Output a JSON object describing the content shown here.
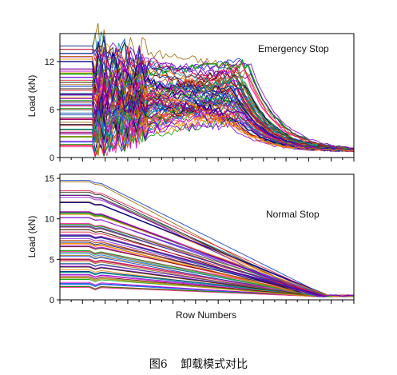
{
  "figure": {
    "caption_number": "图6",
    "caption_text": "卸载模式对比"
  },
  "chart_data": [
    {
      "type": "line",
      "title": "Emergency Stop",
      "xlabel": "",
      "ylabel": "Load (kN)",
      "yticks": [
        "0",
        "6",
        "12"
      ],
      "ylim": [
        0,
        15.5
      ],
      "xlim": [
        0,
        100
      ],
      "grid": false,
      "legend": "none",
      "series_count": 70,
      "notes_initial_loads_kN": [
        1.5,
        2.0,
        2.6,
        3.0,
        3.6,
        4.0,
        4.6,
        5.0,
        5.5,
        6.0,
        6.5,
        7.0,
        7.5,
        8.0,
        8.5,
        9.0,
        9.5,
        10.0,
        10.6,
        11.0,
        12.2,
        12.8,
        13.0,
        13.5,
        14.0
      ],
      "final_load_kN_approx": 0.8
    },
    {
      "type": "line",
      "title": "Normal Stop",
      "xlabel": "Row Numbers",
      "ylabel": "Load (kN)",
      "yticks": [
        "0",
        "5",
        "10",
        "15"
      ],
      "ylim": [
        0,
        15.5
      ],
      "xlim": [
        0,
        100
      ],
      "grid": false,
      "legend": "none",
      "series_count": 70,
      "notes_initial_loads_kN": [
        1.5,
        2.0,
        2.6,
        3.0,
        3.6,
        4.0,
        4.6,
        5.0,
        5.5,
        6.0,
        6.5,
        7.0,
        7.5,
        8.0,
        8.5,
        9.0,
        9.5,
        10.0,
        10.6,
        11.0,
        12.2,
        12.8,
        13.0,
        13.5,
        14.7
      ],
      "final_load_kN_approx": 0.4
    }
  ],
  "palette": [
    "#e8002a",
    "#0033cc",
    "#00a000",
    "#cc00cc",
    "#ff8800",
    "#7a00d6",
    "#008c8c",
    "#111111",
    "#996600",
    "#ff3399",
    "#0066ff",
    "#33aa33",
    "#880000",
    "#000088",
    "#cc6600",
    "#6600aa"
  ]
}
